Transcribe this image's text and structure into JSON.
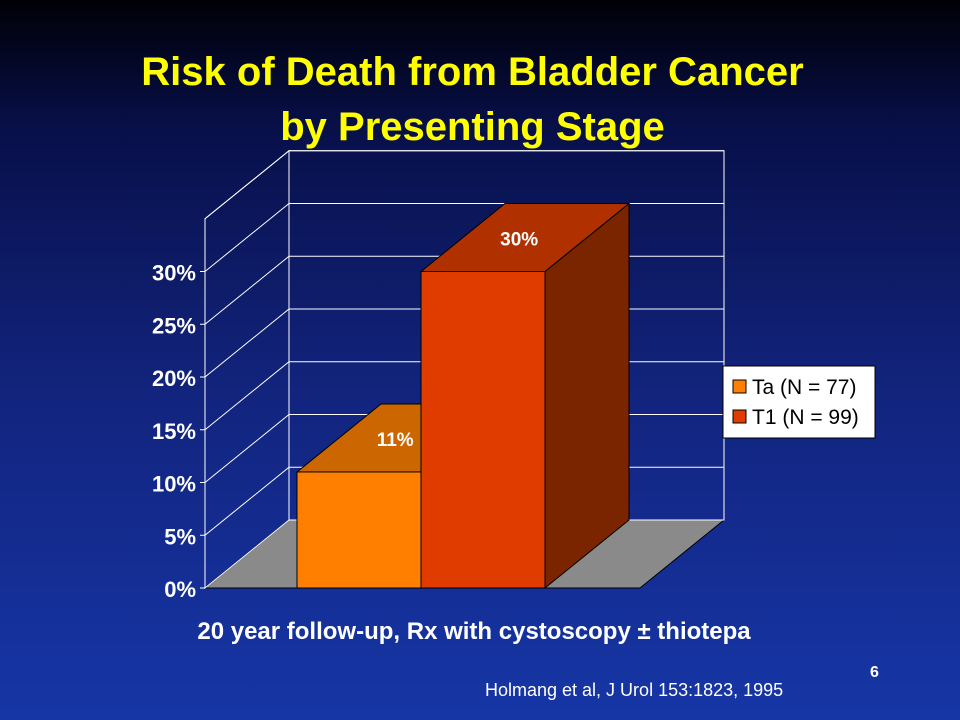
{
  "slide": {
    "title_line1": "Risk of Death from Bladder Cancer",
    "title_line2": "by Presenting Stage",
    "caption": "20 year follow-up, Rx with cystoscopy ± thiotepa",
    "source": "Holmang et al, J Urol 153:1823, 1995",
    "page_number": "6"
  },
  "chart_data": {
    "type": "bar",
    "categories": [
      ""
    ],
    "series": [
      {
        "name": "Ta (N = 77)",
        "values": [
          11
        ],
        "label": "11%",
        "color": "#ff8000"
      },
      {
        "name": "T1 (N = 99)",
        "values": [
          30
        ],
        "label": "30%",
        "color": "#e03c00"
      }
    ],
    "yticks": [
      "0%",
      "5%",
      "10%",
      "15%",
      "20%",
      "25%",
      "30%"
    ],
    "ylim": [
      0,
      35
    ],
    "ystep": 5,
    "grid": true,
    "three_d": true,
    "legend_position": "right",
    "floor_color": "#8a8a8a",
    "top_colors": [
      "#cc6600",
      "#b03000"
    ],
    "side_colors": [
      "#b35900",
      "#7a2400"
    ]
  }
}
